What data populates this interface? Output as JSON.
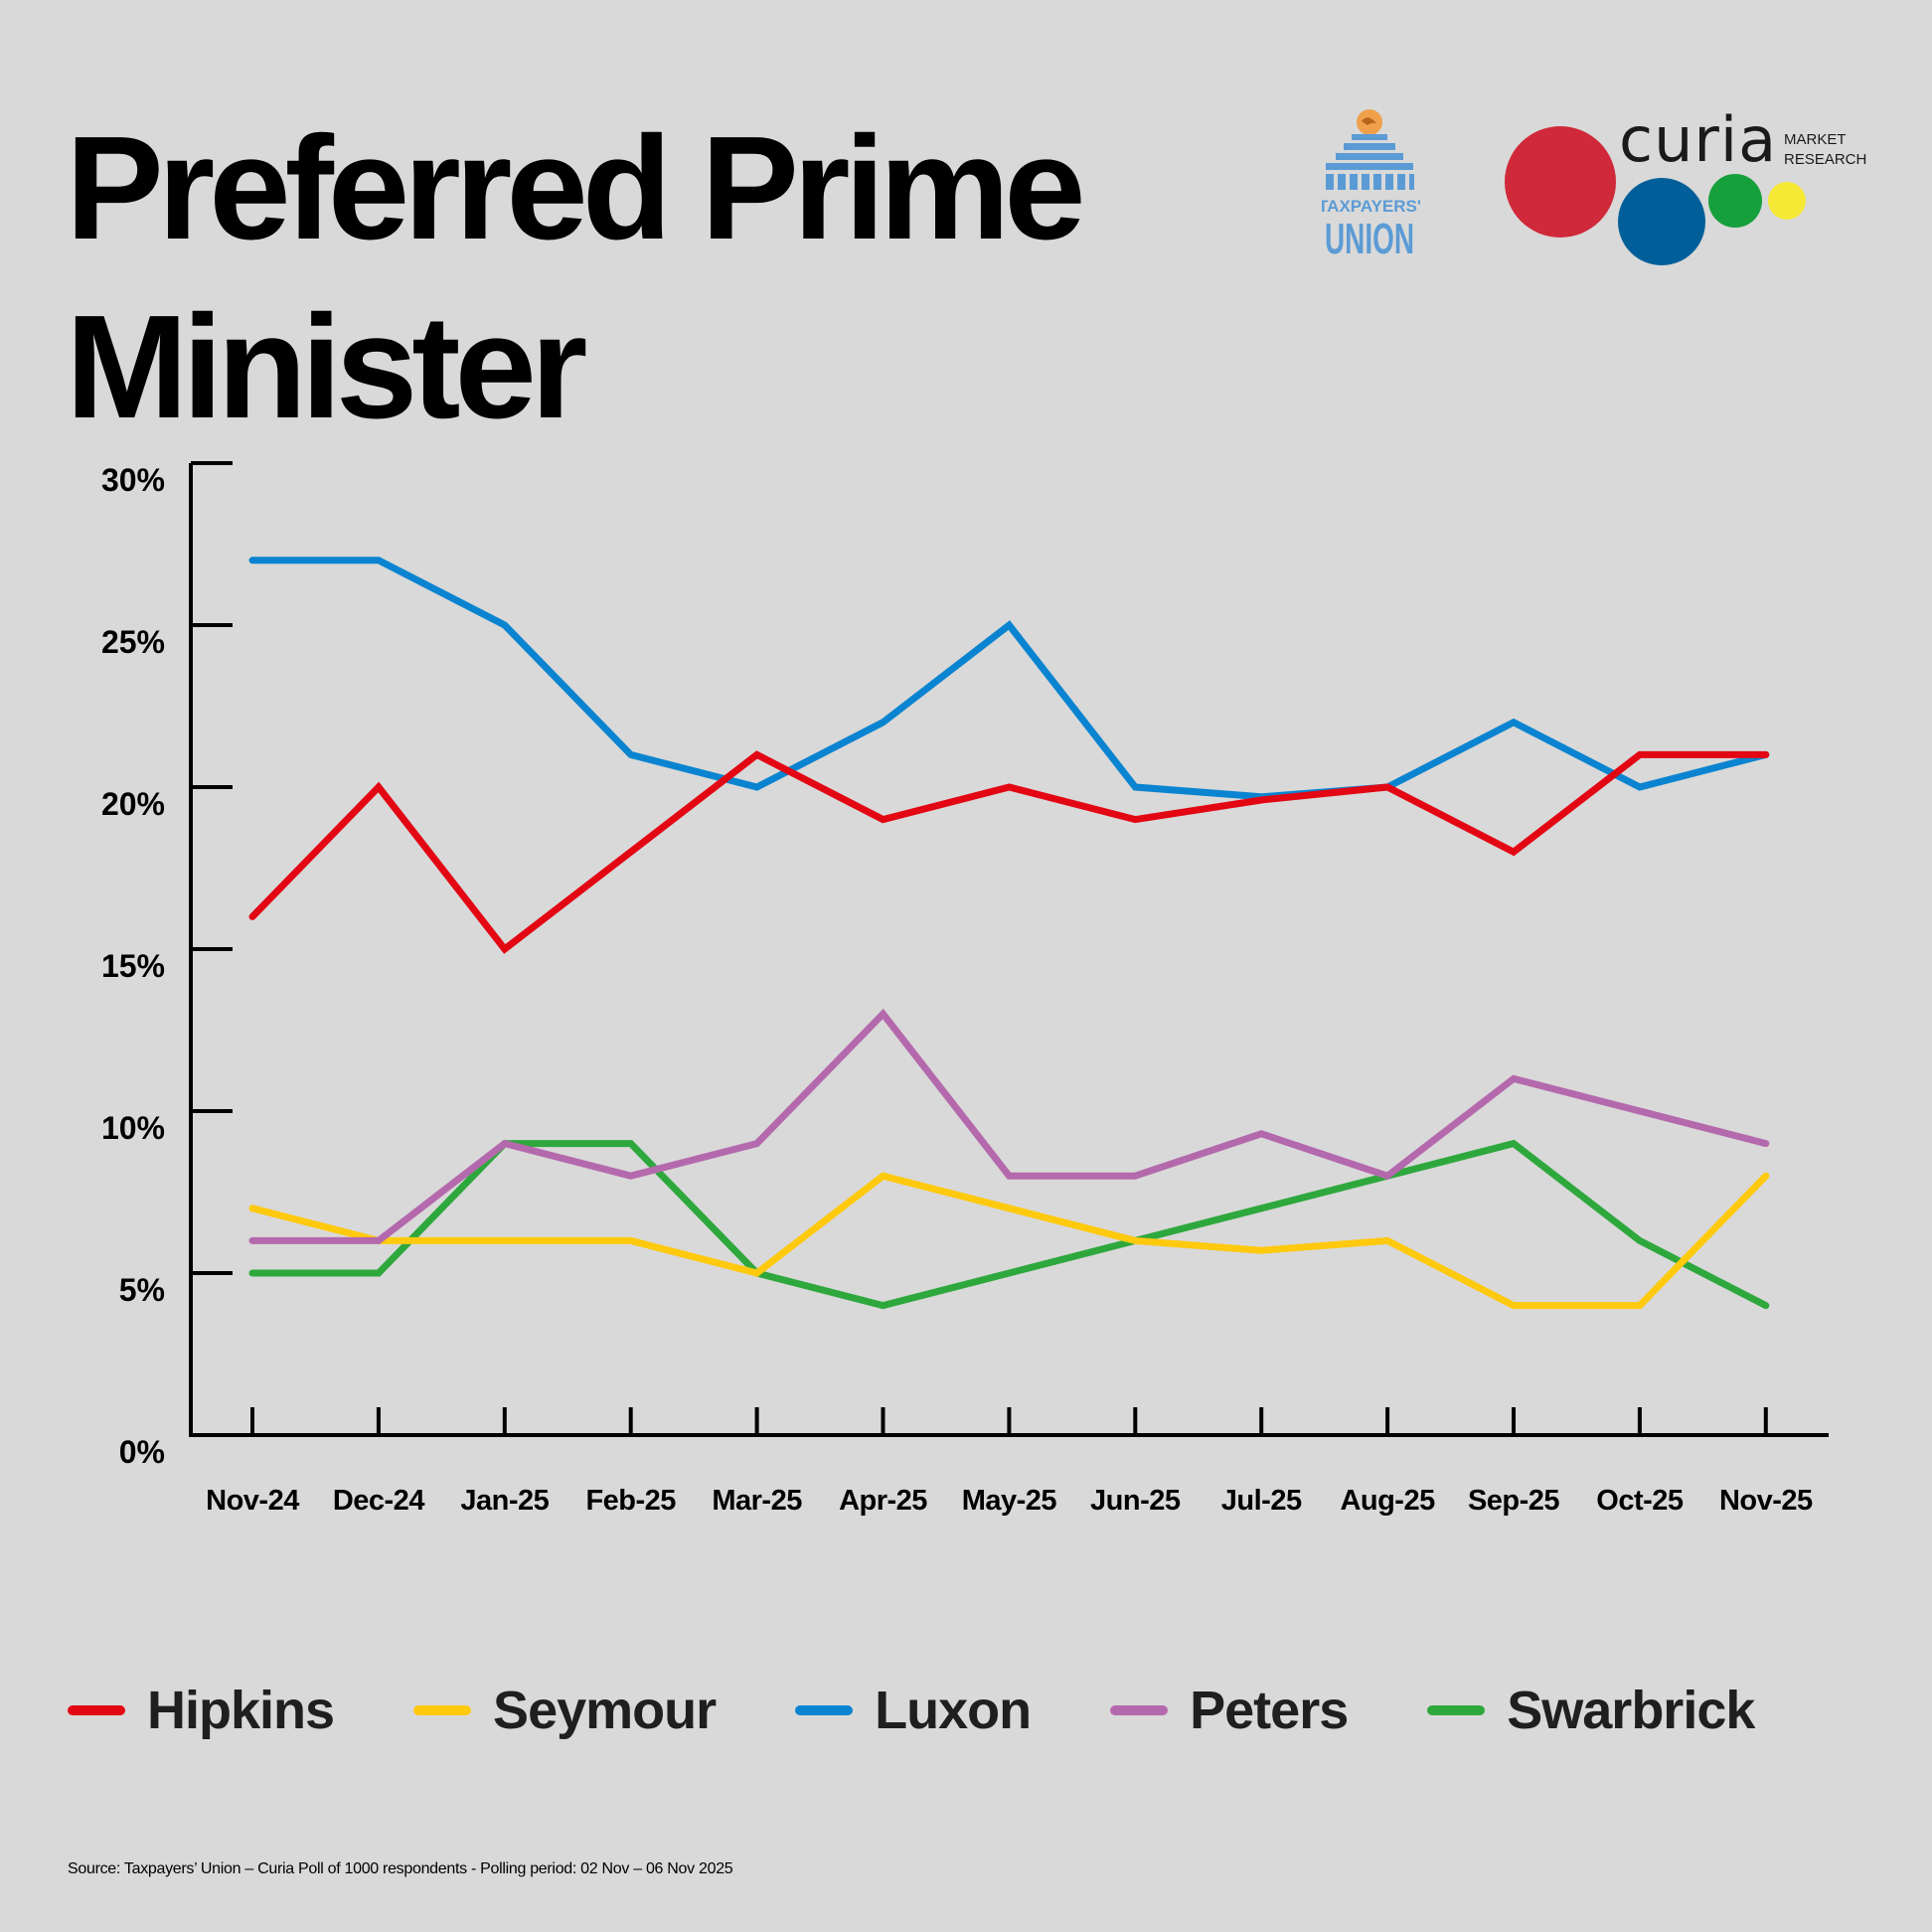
{
  "header": {
    "title_line1": "Preferred Prime",
    "title_line2": "Minister"
  },
  "logos": {
    "taxpayers_union": {
      "line1": "TAXPAYERS'",
      "line2": "UNION",
      "color": "#5b9bd5"
    },
    "curia": {
      "name": "curia",
      "sub1": "MARKET",
      "sub2": "RESEARCH",
      "colors": [
        "#d0293a",
        "#005f99",
        "#16a03c",
        "#f5e936"
      ]
    }
  },
  "chart_data": {
    "type": "line",
    "x": [
      "Nov-24",
      "Dec-24",
      "Jan-25",
      "Feb-25",
      "Mar-25",
      "Apr-25",
      "May-25",
      "Jun-25",
      "Jul-25",
      "Aug-25",
      "Sep-25",
      "Oct-25",
      "Nov-25"
    ],
    "ylim": [
      0,
      30
    ],
    "yticks": [
      0,
      5,
      10,
      15,
      20,
      25,
      30
    ],
    "ytick_labels": [
      "0%",
      "5%",
      "10%",
      "15%",
      "20%",
      "25%",
      "30%"
    ],
    "grid": false,
    "legend_position": "bottom",
    "series": [
      {
        "name": "Hipkins",
        "color": "#e30613",
        "values": [
          16,
          20,
          15,
          18,
          21,
          19,
          20,
          19,
          19.6,
          20,
          18,
          21,
          21
        ]
      },
      {
        "name": "Seymour",
        "color": "#ffc90e",
        "values": [
          7,
          6,
          6,
          6,
          5,
          8,
          7,
          6,
          5.7,
          6,
          4,
          4,
          8
        ]
      },
      {
        "name": "Luxon",
        "color": "#0a84d0",
        "values": [
          27,
          27,
          25,
          21,
          20,
          22,
          25,
          20,
          19.7,
          20,
          22,
          20,
          21
        ]
      },
      {
        "name": "Peters",
        "color": "#b469ad",
        "values": [
          6,
          6,
          9,
          8,
          9,
          13,
          8,
          8,
          9.3,
          8,
          11,
          10,
          9
        ]
      },
      {
        "name": "Swarbrick",
        "color": "#2ea83d",
        "values": [
          5,
          5,
          9,
          9,
          5,
          4,
          5,
          6,
          7,
          8,
          9,
          6,
          4
        ]
      }
    ]
  },
  "footer": {
    "source": "Source: Taxpayers’ Union – Curia Poll of 1000 respondents -  Polling period: 02 Nov – 06 Nov 2025"
  }
}
